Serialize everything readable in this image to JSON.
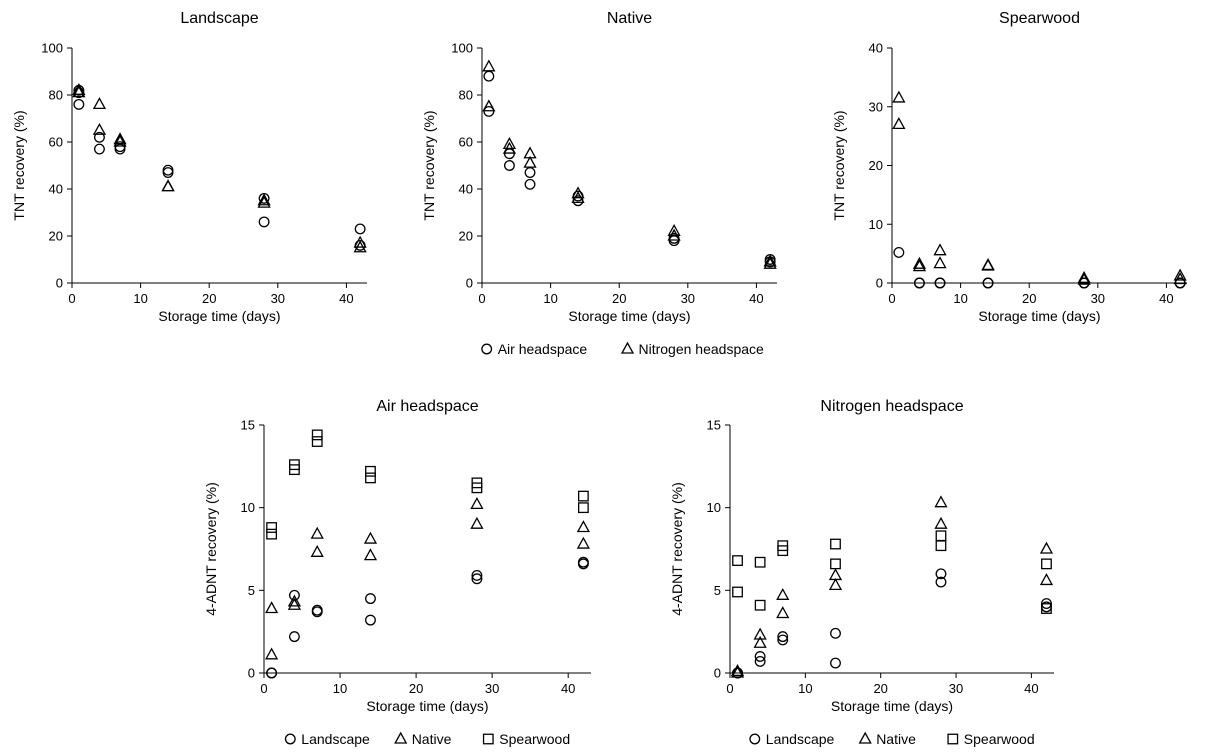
{
  "chart_data": [
    {
      "type": "scatter",
      "title": "Landscape",
      "xlabel": "Storage time (days)",
      "ylabel": "TNT recovery (%)",
      "xlim": [
        0,
        43
      ],
      "ylim": [
        0,
        100
      ],
      "xticks": [
        "0",
        "10",
        "20",
        "30",
        "40"
      ],
      "yticks": [
        "0",
        "20",
        "40",
        "60",
        "80",
        "100"
      ],
      "legend": null,
      "series": [
        {
          "name": "Air headspace",
          "marker": "circle",
          "x": [
            1,
            1,
            1,
            4,
            4,
            7,
            7,
            14,
            14,
            28,
            28,
            42,
            42
          ],
          "y": [
            82,
            81,
            76,
            62,
            57,
            57,
            58,
            48,
            47,
            36,
            26,
            23,
            16
          ]
        },
        {
          "name": "Nitrogen headspace",
          "marker": "triangle",
          "x": [
            1,
            1,
            4,
            4,
            7,
            7,
            14,
            14,
            28,
            28,
            42,
            42
          ],
          "y": [
            82,
            81,
            76,
            65,
            61,
            60,
            41,
            41,
            35,
            34,
            17,
            15
          ]
        }
      ]
    },
    {
      "type": "scatter",
      "title": "Native",
      "xlabel": "Storage time (days)",
      "ylabel": "TNT recovery (%)",
      "xlim": [
        0,
        43
      ],
      "ylim": [
        0,
        100
      ],
      "xticks": [
        "0",
        "10",
        "20",
        "30",
        "40"
      ],
      "yticks": [
        "0",
        "20",
        "40",
        "60",
        "80",
        "100"
      ],
      "legend": {
        "position": "bottom",
        "items": [
          "Air headspace",
          "Nitrogen headspace"
        ]
      },
      "series": [
        {
          "name": "Air headspace",
          "marker": "circle",
          "x": [
            1,
            1,
            4,
            4,
            7,
            7,
            14,
            14,
            28,
            28,
            42,
            42
          ],
          "y": [
            88,
            73,
            55,
            50,
            47,
            42,
            37,
            35,
            19,
            18,
            10,
            9
          ]
        },
        {
          "name": "Nitrogen headspace",
          "marker": "triangle",
          "x": [
            1,
            1,
            4,
            4,
            7,
            7,
            14,
            14,
            28,
            28,
            42,
            42
          ],
          "y": [
            92,
            75,
            59,
            57,
            55,
            51,
            38,
            36,
            22,
            20,
            9,
            8
          ]
        }
      ]
    },
    {
      "type": "scatter",
      "title": "Spearwood",
      "xlabel": "Storage time (days)",
      "ylabel": "TNT recovery (%)",
      "xlim": [
        0,
        43
      ],
      "ylim": [
        0,
        40
      ],
      "xticks": [
        "0",
        "10",
        "20",
        "30",
        "40"
      ],
      "yticks": [
        "0",
        "10",
        "20",
        "30",
        "40"
      ],
      "legend": null,
      "series": [
        {
          "name": "Air headspace",
          "marker": "circle",
          "x": [
            1,
            4,
            4,
            7,
            7,
            14,
            14,
            28,
            28,
            42,
            42
          ],
          "y": [
            5.2,
            0,
            0,
            0,
            0,
            0,
            0,
            0,
            0,
            0,
            0
          ]
        },
        {
          "name": "Nitrogen headspace",
          "marker": "triangle",
          "x": [
            1,
            1,
            4,
            4,
            7,
            7,
            14,
            14,
            28,
            28,
            42,
            42
          ],
          "y": [
            31.5,
            27,
            3.2,
            2.8,
            5.5,
            3.3,
            3,
            2.9,
            0.8,
            0.5,
            1.2,
            0.6
          ]
        }
      ]
    },
    {
      "type": "scatter",
      "title": "Air headspace",
      "xlabel": "Storage time (days)",
      "ylabel": "4-ADNT recovery (%)",
      "xlim": [
        0,
        43
      ],
      "ylim": [
        0,
        15
      ],
      "xticks": [
        "0",
        "10",
        "20",
        "30",
        "40"
      ],
      "yticks": [
        "0",
        "5",
        "10",
        "15"
      ],
      "legend": {
        "position": "bottom",
        "items": [
          "Landscape",
          "Native",
          "Spearwood"
        ]
      },
      "series": [
        {
          "name": "Landscape",
          "marker": "circle",
          "x": [
            1,
            1,
            4,
            4,
            7,
            7,
            14,
            14,
            28,
            28,
            42,
            42
          ],
          "y": [
            0,
            0,
            4.7,
            2.2,
            3.8,
            3.7,
            4.5,
            3.2,
            5.9,
            5.7,
            6.7,
            6.6
          ]
        },
        {
          "name": "Native",
          "marker": "triangle",
          "x": [
            1,
            1,
            4,
            4,
            7,
            7,
            14,
            14,
            28,
            28,
            42,
            42
          ],
          "y": [
            3.9,
            1.1,
            4.3,
            4.1,
            8.4,
            7.3,
            8.1,
            7.1,
            10.2,
            9.0,
            8.8,
            7.8
          ]
        },
        {
          "name": "Spearwood",
          "marker": "square",
          "x": [
            1,
            1,
            4,
            4,
            7,
            7,
            14,
            14,
            28,
            28,
            42,
            42
          ],
          "y": [
            8.8,
            8.4,
            12.6,
            12.3,
            14.4,
            14.0,
            12.2,
            11.8,
            11.5,
            11.2,
            10.7,
            10.0
          ]
        }
      ]
    },
    {
      "type": "scatter",
      "title": "Nitrogen headspace",
      "xlabel": "Storage time (days)",
      "ylabel": "4-ADNT recovery (%)",
      "xlim": [
        0,
        43
      ],
      "ylim": [
        0,
        15
      ],
      "xticks": [
        "0",
        "10",
        "20",
        "30",
        "40"
      ],
      "yticks": [
        "0",
        "5",
        "10",
        "15"
      ],
      "legend": {
        "position": "bottom",
        "items": [
          "Landscape",
          "Native",
          "Spearwood"
        ]
      },
      "series": [
        {
          "name": "Landscape",
          "marker": "circle",
          "x": [
            1,
            1,
            4,
            4,
            7,
            7,
            14,
            14,
            28,
            28,
            42,
            42
          ],
          "y": [
            0,
            0,
            1.0,
            0.7,
            2.2,
            2.0,
            2.4,
            0.6,
            6.0,
            5.5,
            4.2,
            4.0
          ]
        },
        {
          "name": "Native",
          "marker": "triangle",
          "x": [
            1,
            1,
            4,
            4,
            7,
            7,
            14,
            14,
            28,
            28,
            42,
            42
          ],
          "y": [
            0.1,
            0,
            2.3,
            1.8,
            4.7,
            3.6,
            5.9,
            5.3,
            10.3,
            9.0,
            7.5,
            5.6
          ]
        },
        {
          "name": "Spearwood",
          "marker": "square",
          "x": [
            1,
            1,
            4,
            4,
            7,
            7,
            14,
            14,
            28,
            28,
            42,
            42
          ],
          "y": [
            6.8,
            4.9,
            6.7,
            4.1,
            7.7,
            7.4,
            7.8,
            6.6,
            8.3,
            7.7,
            6.6,
            3.9
          ]
        }
      ]
    }
  ]
}
